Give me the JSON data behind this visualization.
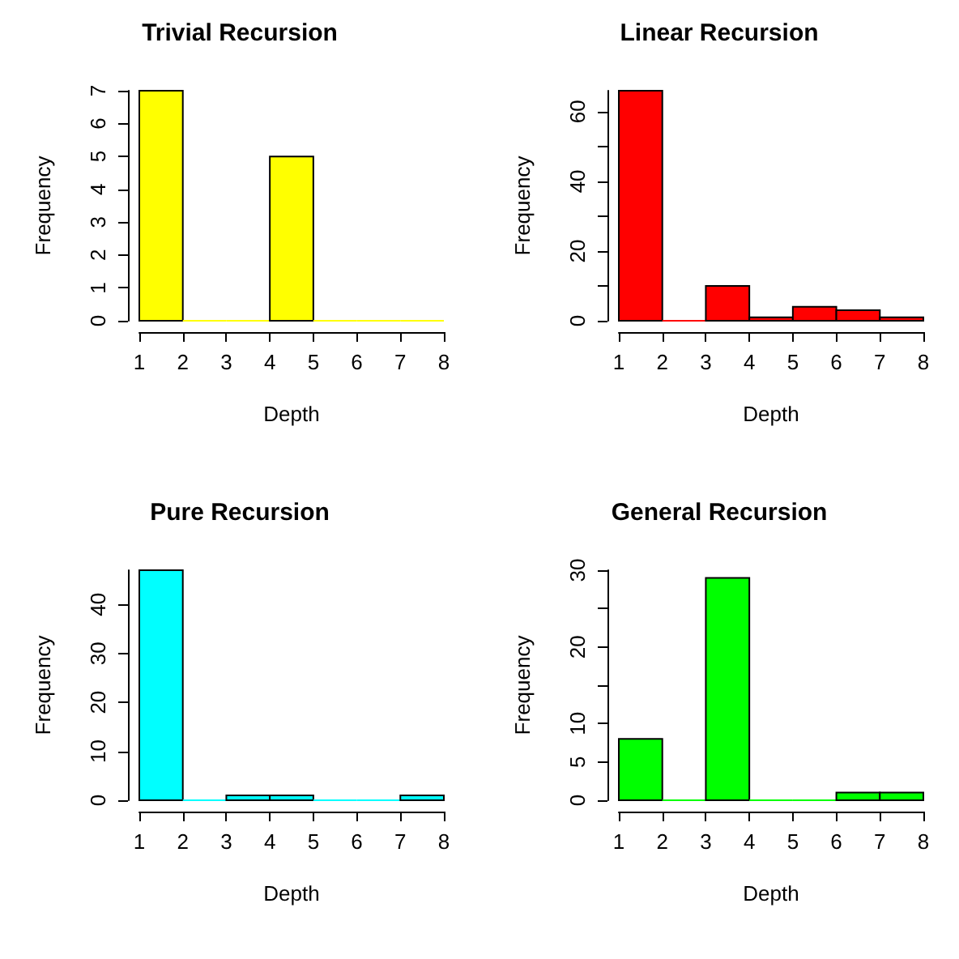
{
  "chart_data": [
    {
      "type": "histogram",
      "title": "Trivial Recursion",
      "xlabel": "Depth",
      "ylabel": "Frequency",
      "bins": [
        1,
        2,
        3,
        4,
        5,
        6,
        7,
        8
      ],
      "values": [
        7,
        0,
        0,
        5,
        0,
        0,
        0
      ],
      "color": "#ffff00",
      "xlim": [
        1,
        8
      ],
      "xticks": [
        1,
        2,
        3,
        4,
        5,
        6,
        7,
        8
      ],
      "ylim": [
        0,
        7
      ],
      "yticks": [
        0,
        1,
        2,
        3,
        4,
        5,
        6,
        7
      ],
      "grid": false
    },
    {
      "type": "histogram",
      "title": "Linear Recursion",
      "xlabel": "Depth",
      "ylabel": "Frequency",
      "bins": [
        1,
        2,
        3,
        4,
        5,
        6,
        7,
        8
      ],
      "values": [
        66,
        0,
        10,
        1,
        4,
        3,
        1
      ],
      "color": "#ff0000",
      "xlim": [
        1,
        8
      ],
      "xticks": [
        1,
        2,
        3,
        4,
        5,
        6,
        7,
        8
      ],
      "ylim": [
        0,
        66
      ],
      "yticks": [
        0,
        {
          "value": 10,
          "label": null
        },
        20,
        {
          "value": 30,
          "label": null
        },
        40,
        {
          "value": 50,
          "label": null
        },
        60
      ],
      "grid": false
    },
    {
      "type": "histogram",
      "title": "Pure Recursion",
      "xlabel": "Depth",
      "ylabel": "Frequency",
      "bins": [
        1,
        2,
        3,
        4,
        5,
        6,
        7,
        8
      ],
      "values": [
        47,
        0,
        1,
        1,
        0,
        0,
        1
      ],
      "color": "#00ffff",
      "xlim": [
        1,
        8
      ],
      "xticks": [
        1,
        2,
        3,
        4,
        5,
        6,
        7,
        8
      ],
      "ylim": [
        0,
        47
      ],
      "yticks": [
        0,
        10,
        20,
        30,
        40
      ],
      "grid": false
    },
    {
      "type": "histogram",
      "title": "General Recursion",
      "xlabel": "Depth",
      "ylabel": "Frequency",
      "bins": [
        1,
        2,
        3,
        4,
        5,
        6,
        7,
        8
      ],
      "values": [
        8,
        0,
        29,
        0,
        0,
        1,
        1
      ],
      "color": "#00ff00",
      "xlim": [
        1,
        8
      ],
      "xticks": [
        1,
        2,
        3,
        4,
        5,
        6,
        7,
        8
      ],
      "ylim": [
        0,
        30
      ],
      "yticks": [
        0,
        5,
        10,
        {
          "value": 15,
          "label": null
        },
        20,
        {
          "value": 25,
          "label": null
        },
        30
      ],
      "grid": false
    }
  ]
}
